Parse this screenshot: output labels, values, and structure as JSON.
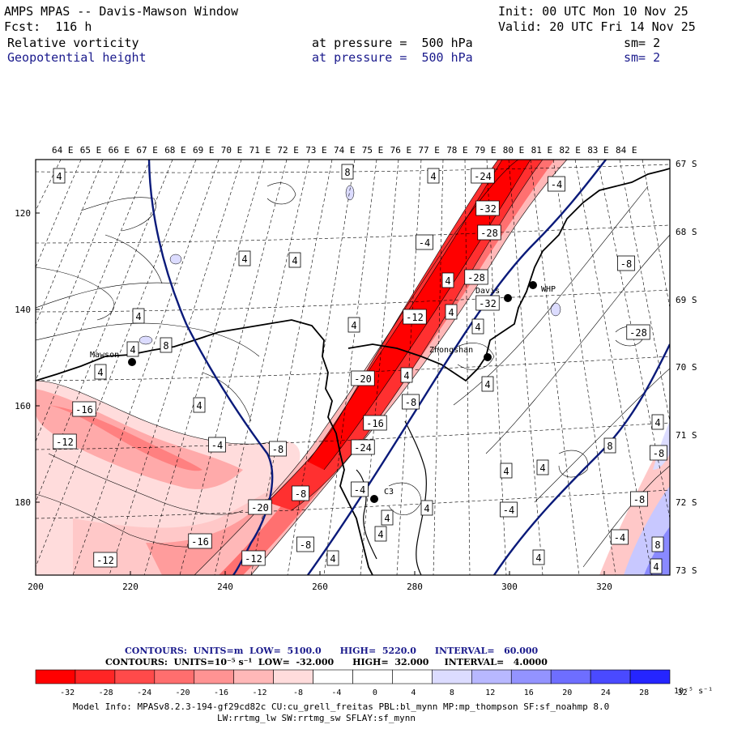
{
  "header": {
    "line1_left": "AMPS MPAS -- Davis-Mawson Window",
    "line1_right": "Init: 00 UTC Mon 10 Nov 25",
    "line2_left": "Fcst:  116 h",
    "line2_right": "Valid: 20 UTC Fri 14 Nov 25",
    "field1_name": "Relative vorticity",
    "field1_level": "at pressure =  500 hPa",
    "field1_sm": "sm= 2",
    "field2_name": "Geopotential height",
    "field2_level": "at pressure =  500 hPa",
    "field2_sm": "sm= 2"
  },
  "colors": {
    "height_contour": "#0a1a7a",
    "negative_max": "#ff0000",
    "positive_max": "#0000ff",
    "coast": "#000000"
  },
  "map": {
    "lon_labels": [
      "64 E",
      "65 E",
      "66 E",
      "67 E",
      "68 E",
      "69 E",
      "70 E",
      "71 E",
      "72 E",
      "73 E",
      "74 E",
      "75 E",
      "76 E",
      "77 E",
      "78 E",
      "79 E",
      "80 E",
      "81 E",
      "82 E",
      "83 E",
      "84 E"
    ],
    "lat_labels": [
      "67 S",
      "68 S",
      "69 S",
      "70 S",
      "71 S",
      "72 S",
      "73 S"
    ],
    "x_ticks": [
      "200",
      "220",
      "240",
      "260",
      "280",
      "300",
      "320"
    ],
    "y_ticks": [
      "120",
      "140",
      "160",
      "180"
    ],
    "stations": [
      {
        "name": "Mawson",
        "icon": "station-dot-icon"
      },
      {
        "name": "Davis",
        "icon": "station-dot-icon"
      },
      {
        "name": "WHP",
        "icon": "station-dot-icon"
      },
      {
        "name": "Zhongshan",
        "icon": "station-dot-icon"
      },
      {
        "name": "C3",
        "icon": "station-dot-icon"
      }
    ],
    "contour_labels": [
      "4",
      "8",
      "4",
      "-24",
      "-4",
      "-32",
      "-28",
      "-4",
      "4",
      "4",
      "-8",
      "-28",
      "4",
      "-32",
      "-12",
      "4",
      "4",
      "4",
      "4",
      "-28",
      "-20",
      "4",
      "-16",
      "4",
      "-8",
      "4",
      "-16",
      "-12",
      "-4",
      "-8",
      "8",
      "-8",
      "-24",
      "-8",
      "4",
      "4",
      "-4",
      "-20",
      "-4",
      "-8",
      "4",
      "-8",
      "4",
      "4",
      "-12",
      "-16",
      "-12",
      "-4",
      "8",
      "4",
      "4",
      "8",
      "4",
      "4",
      "4",
      "4"
    ]
  },
  "footer": {
    "contours_height": "CONTOURS:  UNITS=m  LOW=  5100.0      HIGH=  5220.0      INTERVAL=   60.000",
    "contours_vort": "CONTOURS:  UNITS=10⁻⁵ s⁻¹  LOW=  -32.000      HIGH=  32.000     INTERVAL=   4.0000",
    "colorbar_ticks": [
      "-32",
      "-28",
      "-24",
      "-20",
      "-16",
      "-12",
      "-8",
      "-4",
      "0",
      "4",
      "8",
      "12",
      "16",
      "20",
      "24",
      "28",
      "32"
    ],
    "colorbar_units": "10⁻⁵ s⁻¹",
    "model_info_1": "Model Info: MPASv8.2.3-194-gf29cd82c CU:cu_grell_freitas PBL:bl_mynn MP:mp_thompson SF:sf_noahmp 8.0",
    "model_info_2": "LW:rrtmg_lw SW:rrtmg_sw SFLAY:sf_mynn"
  }
}
